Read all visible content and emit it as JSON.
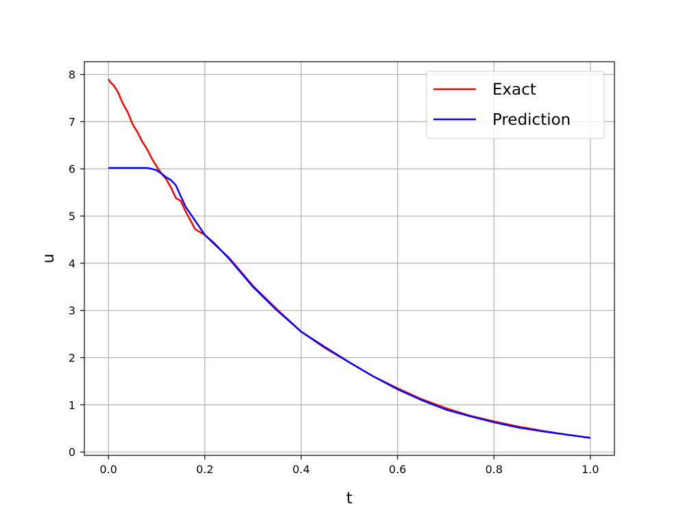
{
  "chart_data": {
    "type": "line",
    "title": "",
    "xlabel": "t",
    "ylabel": "u",
    "xlim": [
      -0.05,
      1.05
    ],
    "ylim": [
      -0.07,
      8.27
    ],
    "xticks": [
      0.0,
      0.2,
      0.4,
      0.6,
      0.8,
      1.0
    ],
    "xtick_labels": [
      "0.0",
      "0.2",
      "0.4",
      "0.6",
      "0.8",
      "1.0"
    ],
    "yticks": [
      0,
      1,
      2,
      3,
      4,
      5,
      6,
      7,
      8
    ],
    "ytick_labels": [
      "0",
      "1",
      "2",
      "3",
      "4",
      "5",
      "6",
      "7",
      "8"
    ],
    "grid": true,
    "legend_position": "upper right",
    "series": [
      {
        "name": "Exact",
        "color": "#ff0000",
        "x": [
          0.0,
          0.005,
          0.01,
          0.02,
          0.03,
          0.04,
          0.05,
          0.06,
          0.07,
          0.08,
          0.09,
          0.1,
          0.11,
          0.12,
          0.13,
          0.14,
          0.15,
          0.16,
          0.18,
          0.2,
          0.22,
          0.25,
          0.3,
          0.35,
          0.4,
          0.45,
          0.5,
          0.55,
          0.6,
          0.65,
          0.7,
          0.75,
          0.8,
          0.85,
          0.9,
          0.95,
          1.0
        ],
        "y": [
          7.9,
          7.82,
          7.78,
          7.62,
          7.38,
          7.2,
          6.95,
          6.78,
          6.58,
          6.42,
          6.22,
          6.05,
          5.9,
          5.78,
          5.6,
          5.38,
          5.32,
          5.1,
          4.72,
          4.6,
          4.4,
          4.12,
          3.52,
          3.02,
          2.55,
          2.2,
          1.9,
          1.6,
          1.35,
          1.12,
          0.93,
          0.77,
          0.65,
          0.54,
          0.45,
          0.37,
          0.3
        ]
      },
      {
        "name": "Prediction",
        "color": "#0000ff",
        "x": [
          0.0,
          0.02,
          0.04,
          0.06,
          0.08,
          0.09,
          0.1,
          0.11,
          0.12,
          0.13,
          0.14,
          0.15,
          0.16,
          0.18,
          0.2,
          0.22,
          0.25,
          0.3,
          0.35,
          0.4,
          0.45,
          0.5,
          0.55,
          0.6,
          0.65,
          0.7,
          0.75,
          0.8,
          0.85,
          0.9,
          0.95,
          1.0
        ],
        "y": [
          6.02,
          6.02,
          6.02,
          6.02,
          6.02,
          6.0,
          5.97,
          5.9,
          5.82,
          5.76,
          5.65,
          5.42,
          5.2,
          4.9,
          4.6,
          4.42,
          4.1,
          3.5,
          3.0,
          2.55,
          2.22,
          1.9,
          1.6,
          1.33,
          1.1,
          0.9,
          0.76,
          0.63,
          0.52,
          0.44,
          0.37,
          0.3
        ]
      }
    ]
  }
}
